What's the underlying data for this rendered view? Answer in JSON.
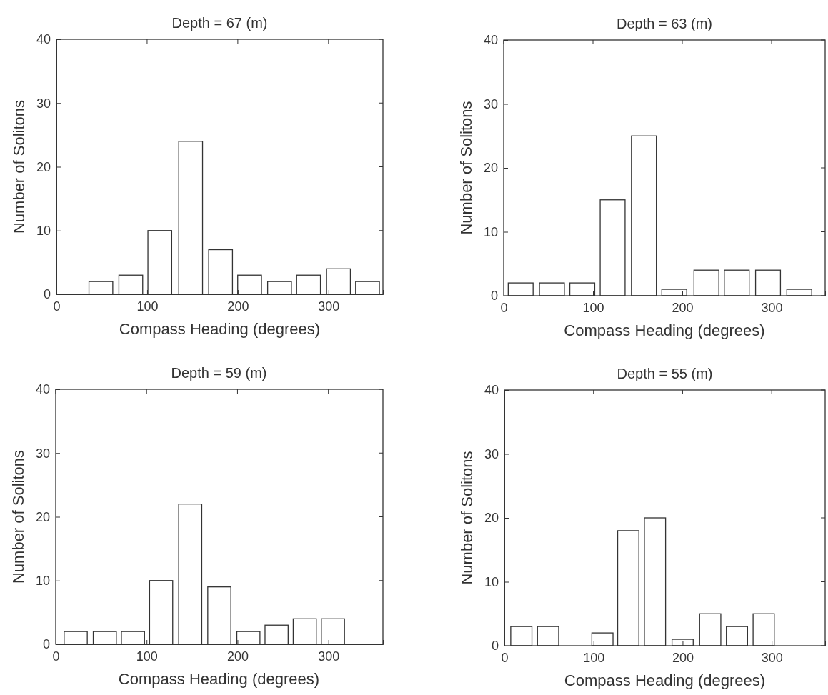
{
  "chart_data": [
    {
      "type": "bar",
      "title": "Depth = 67 (m)",
      "xlabel": "Compass Heading (degrees)",
      "ylabel": "Number of Solitons",
      "x": [
        49,
        82,
        114,
        148,
        181,
        213,
        246,
        278,
        311,
        343
      ],
      "values": [
        2,
        3,
        10,
        24,
        7,
        3,
        2,
        3,
        4,
        2
      ],
      "color": "#ffffff",
      "xlim": [
        0,
        360
      ],
      "xticks": [
        0,
        100,
        200,
        300
      ],
      "ylim": [
        0,
        40
      ],
      "yticks": [
        0,
        10,
        20,
        30,
        40
      ],
      "grid": false
    },
    {
      "type": "bar",
      "title": "Depth = 63 (m)",
      "xlabel": "Compass Heading (degrees)",
      "ylabel": "Number of Solitons",
      "x": [
        19,
        54,
        88,
        122,
        157,
        191,
        227,
        261,
        296,
        331
      ],
      "values": [
        2,
        2,
        2,
        15,
        25,
        1,
        4,
        4,
        4,
        1
      ],
      "color": "#ffffff",
      "xlim": [
        0,
        360
      ],
      "xticks": [
        0,
        100,
        200,
        300
      ],
      "ylim": [
        0,
        40
      ],
      "yticks": [
        0,
        10,
        20,
        30,
        40
      ],
      "grid": false
    },
    {
      "type": "bar",
      "title": "Depth = 59 (m)",
      "xlabel": "Compass Heading (degrees)",
      "ylabel": "Number of Solitons",
      "x": [
        22,
        54,
        85,
        116,
        148,
        180,
        212,
        243,
        274,
        305
      ],
      "values": [
        2,
        2,
        2,
        10,
        22,
        9,
        2,
        3,
        4,
        4
      ],
      "color": "#ffffff",
      "xlim": [
        0,
        360
      ],
      "xticks": [
        0,
        100,
        200,
        300
      ],
      "ylim": [
        0,
        40
      ],
      "yticks": [
        0,
        10,
        20,
        30,
        40
      ],
      "grid": false
    },
    {
      "type": "bar",
      "title": "Depth = 55 (m)",
      "xlabel": "Compass Heading (degrees)",
      "ylabel": "Number of Solitons",
      "x": [
        19,
        49,
        79,
        110,
        139,
        169,
        200,
        231,
        261,
        291
      ],
      "values": [
        3,
        3,
        0,
        2,
        18,
        20,
        1,
        5,
        3,
        5
      ],
      "color": "#ffffff",
      "xlim": [
        0,
        360
      ],
      "xticks": [
        0,
        100,
        200,
        300
      ],
      "ylim": [
        0,
        40
      ],
      "yticks": [
        0,
        10,
        20,
        30,
        40
      ],
      "grid": false
    }
  ]
}
